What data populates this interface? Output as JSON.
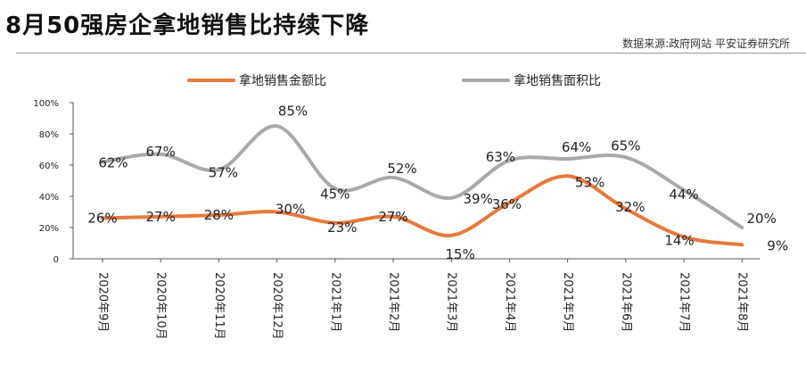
{
  "header": {
    "title": "8月50强房企拿地销售比持续下降",
    "source": "数据来源:政府网站 平安证券研究所"
  },
  "chart_data": {
    "type": "line",
    "title": "8月50强房企拿地销售比持续下降",
    "categories": [
      "2020年9月",
      "2020年10月",
      "2020年11月",
      "2020年12月",
      "2021年1月",
      "2021年2月",
      "2021年3月",
      "2021年4月",
      "2021年5月",
      "2021年6月",
      "2021年7月",
      "2021年8月"
    ],
    "series": [
      {
        "name": "拿地销售金额比",
        "color": "#E8793A",
        "values": [
          26,
          27,
          28,
          30,
          23,
          27,
          15,
          36,
          53,
          32,
          14,
          9
        ],
        "labels": [
          "26%",
          "27%",
          "28%",
          "30%",
          "23%",
          "27%",
          "15%",
          "36%",
          "53%",
          "32%",
          "14%",
          "9%"
        ]
      },
      {
        "name": "拿地销售面积比",
        "color": "#A9A9A9",
        "values": [
          62,
          67,
          57,
          85,
          45,
          52,
          39,
          63,
          64,
          65,
          44,
          20
        ],
        "labels": [
          "62%",
          "67%",
          "57%",
          "85%",
          "45%",
          "52%",
          "39%",
          "63%",
          "64%",
          "65%",
          "44%",
          "20%"
        ]
      }
    ],
    "ylim": [
      0,
      100
    ],
    "yticks": [
      0,
      20,
      40,
      60,
      80,
      100
    ],
    "ytick_labels": [
      "0",
      "20%",
      "40%",
      "60%",
      "80%",
      "100%"
    ],
    "xlabel": "",
    "ylabel": "",
    "legend_position": "top",
    "grid": false
  }
}
